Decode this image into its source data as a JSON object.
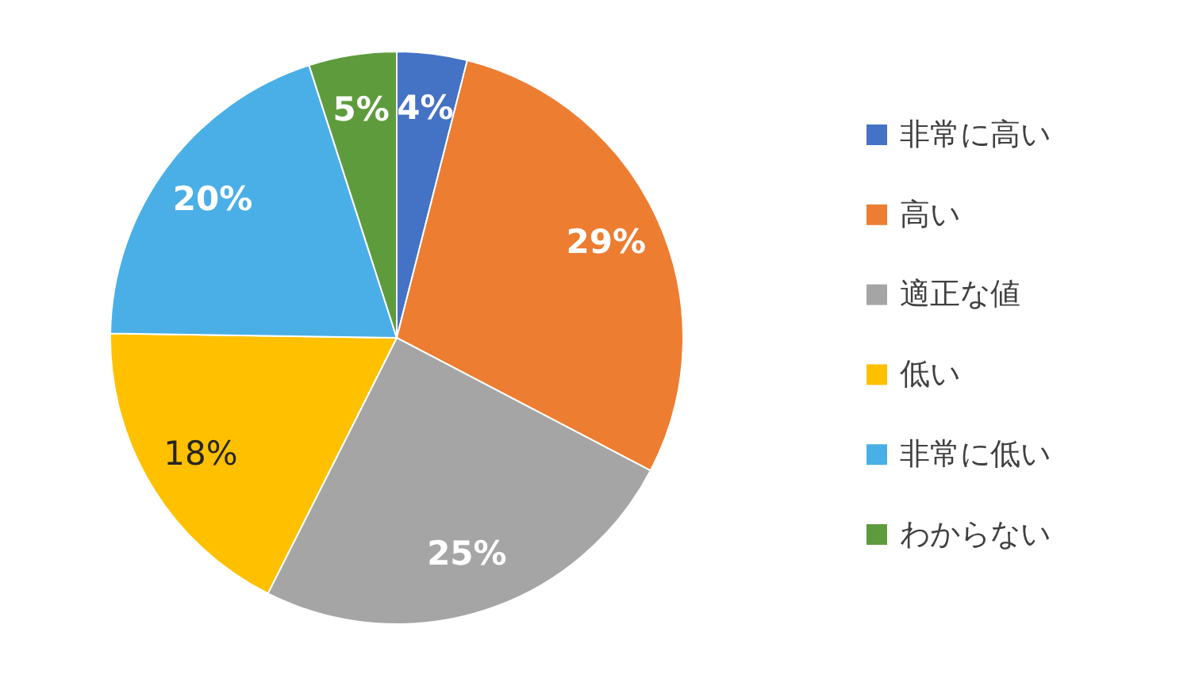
{
  "chart_data": {
    "type": "pie",
    "categories": [
      "非常に高い",
      "高い",
      "適正な値",
      "低い",
      "非常に低い",
      "わからない"
    ],
    "values": [
      4,
      29,
      25,
      18,
      20,
      5
    ],
    "colors": [
      "#4472c4",
      "#ed7d31",
      "#a5a5a5",
      "#ffc000",
      "#4aafe6",
      "#5e9b3d"
    ],
    "value_labels": [
      "4%",
      "29%",
      "25%",
      "18%",
      "20%",
      "5%"
    ],
    "legend": "right"
  }
}
